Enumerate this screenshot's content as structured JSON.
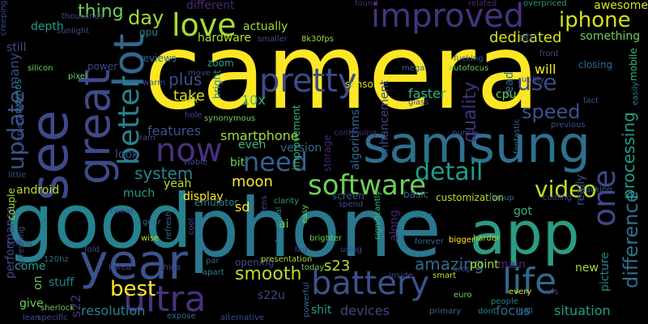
{
  "word_cloud": {
    "background": "#000000",
    "palette": [
      "#fde725",
      "#b5de2b",
      "#6ece58",
      "#35b779",
      "#1f9e89",
      "#26828e",
      "#31688e",
      "#3e4989",
      "#482878",
      "#440154"
    ],
    "words": [
      {
        "text": "camera",
        "color": "#fde725"
      },
      {
        "text": "good",
        "color": "#26828e"
      },
      {
        "text": "phone",
        "color": "#2a788e"
      },
      {
        "text": "app",
        "color": "#2c9b84"
      },
      {
        "text": "samsung",
        "color": "#2d708e"
      },
      {
        "text": "see",
        "color": "#3e4989"
      },
      {
        "text": "year",
        "color": "#3b528b"
      },
      {
        "text": "great",
        "color": "#3e4a89"
      },
      {
        "text": "lot",
        "color": "#31688e"
      },
      {
        "text": "battery",
        "color": "#3b528b"
      },
      {
        "text": "life",
        "color": "#31688e"
      },
      {
        "text": "improved",
        "color": "#46337e"
      },
      {
        "text": "pretty",
        "color": "#3e4a89"
      },
      {
        "text": "love",
        "color": "#a8db34"
      },
      {
        "text": "now",
        "color": "#46327e"
      },
      {
        "text": "software",
        "color": "#6ece58"
      },
      {
        "text": "detail",
        "color": "#1f9e89"
      },
      {
        "text": "ultra",
        "color": "#46327e"
      },
      {
        "text": "need",
        "color": "#35608d"
      },
      {
        "text": "one",
        "color": "#3f4889"
      },
      {
        "text": "better",
        "color": "#26828e"
      },
      {
        "text": "update",
        "color": "#3b528b"
      },
      {
        "text": "video",
        "color": "#c2df23"
      },
      {
        "text": "difference",
        "color": "#2c728e"
      },
      {
        "text": "iphone",
        "color": "#d2e21b"
      },
      {
        "text": "use",
        "color": "#3e4989"
      },
      {
        "text": "best",
        "color": "#fde725"
      },
      {
        "text": "day",
        "color": "#a5db36"
      },
      {
        "text": "speed",
        "color": "#3b528b"
      },
      {
        "text": "smooth",
        "color": "#b5de2b"
      },
      {
        "text": "quality",
        "color": "#46327e"
      },
      {
        "text": "amazing",
        "color": "#31688e"
      },
      {
        "text": "processing",
        "color": "#1f9e89"
      },
      {
        "text": "thing",
        "color": "#6ece58"
      },
      {
        "text": "dedicated",
        "color": "#d8e219"
      },
      {
        "text": "system",
        "color": "#26828e"
      },
      {
        "text": "smartphone",
        "color": "#a0da39"
      },
      {
        "text": "features",
        "color": "#3b528b"
      },
      {
        "text": "moon",
        "color": "#fde725"
      },
      {
        "text": "resolution",
        "color": "#26828e"
      },
      {
        "text": "devices",
        "color": "#3e4989"
      },
      {
        "text": "focus",
        "color": "#31688e"
      },
      {
        "text": "situation",
        "color": "#1f9e89"
      },
      {
        "text": "s23",
        "color": "#b5de2b"
      },
      {
        "text": "s22u",
        "color": "#3e4989"
      },
      {
        "text": "s22",
        "color": "#46327e"
      },
      {
        "text": "plus",
        "color": "#3b528b"
      },
      {
        "text": "take",
        "color": "#d8e219"
      },
      {
        "text": "hardware",
        "color": "#b5de2b"
      },
      {
        "text": "depth",
        "color": "#1f9e89"
      },
      {
        "text": "awesome",
        "color": "#d8e219"
      },
      {
        "text": "actually",
        "color": "#a0da39"
      },
      {
        "text": "etc",
        "color": "#3b528b"
      },
      {
        "text": "cpu",
        "color": "#6ece58"
      },
      {
        "text": "android",
        "color": "#b5de2b"
      },
      {
        "text": "performance",
        "color": "#3e4989"
      },
      {
        "text": "display",
        "color": "#fde725"
      },
      {
        "text": "10x",
        "color": "#35b779"
      },
      {
        "text": "sd",
        "color": "#fde725"
      },
      {
        "text": "ai",
        "color": "#6ece58"
      },
      {
        "text": "give",
        "color": "#6ece58"
      },
      {
        "text": "stuff",
        "color": "#26828e"
      },
      {
        "text": "come",
        "color": "#2c9b84"
      },
      {
        "text": "shit",
        "color": "#1f9e89"
      },
      {
        "text": "main",
        "color": "#482878"
      },
      {
        "text": "new",
        "color": "#a0da39"
      },
      {
        "text": "got",
        "color": "#35b779"
      },
      {
        "text": "yeah",
        "color": "#b5de2b"
      },
      {
        "text": "bit",
        "color": "#6ece58"
      },
      {
        "text": "much",
        "color": "#1f9e89"
      },
      {
        "text": "look",
        "color": "#3e4989"
      },
      {
        "text": "even",
        "color": "#35b779"
      },
      {
        "text": "version",
        "color": "#31688e"
      },
      {
        "text": "faster",
        "color": "#35b779"
      },
      {
        "text": "point",
        "color": "#a0da39"
      },
      {
        "text": "along",
        "color": "#482878"
      },
      {
        "text": "will",
        "color": "#fde725"
      },
      {
        "text": "read",
        "color": "#31688e"
      },
      {
        "text": "really",
        "color": "#3e4989"
      },
      {
        "text": "picture",
        "color": "#26828e"
      },
      {
        "text": "something",
        "color": "#6ece58"
      },
      {
        "text": "gpu",
        "color": "#26828e"
      },
      {
        "text": "zoom",
        "color": "#2c9b84"
      },
      {
        "text": "different",
        "color": "#482878"
      },
      {
        "text": "sensor",
        "color": "#d8e219"
      },
      {
        "text": "customization",
        "color": "#b5de2b"
      },
      {
        "text": "enhancement",
        "color": "#3e4989"
      },
      {
        "text": "algorithms",
        "color": "#31688e"
      },
      {
        "text": "improvement",
        "color": "#35b779"
      },
      {
        "text": "bright",
        "color": "#26828e"
      },
      {
        "text": "storage",
        "color": "#482878"
      },
      {
        "text": "screen",
        "color": "#3b528b"
      },
      {
        "text": "basic",
        "color": "#31688e"
      },
      {
        "text": "still",
        "color": "#3e4989"
      },
      {
        "text": "many",
        "color": "#3e4989"
      },
      {
        "text": "exynos",
        "color": "#26828e"
      },
      {
        "text": "on",
        "color": "#6ece58"
      },
      {
        "text": "couple",
        "color": "#a0da39"
      },
      {
        "text": "reviews",
        "color": "#31688e"
      },
      {
        "text": "power",
        "color": "#3e4989"
      },
      {
        "text": "closing",
        "color": "#31688e"
      },
      {
        "text": "emulator",
        "color": "#26828e"
      },
      {
        "text": "idr",
        "color": "#b5de2b"
      },
      {
        "text": "opening",
        "color": "#3e4989"
      },
      {
        "text": "clarity",
        "color": "#2c9b84"
      },
      {
        "text": "lineup",
        "color": "#31688e"
      },
      {
        "text": "glass",
        "color": "#3e4989"
      },
      {
        "text": "mega",
        "color": "#31688e"
      },
      {
        "text": "autofocus",
        "color": "#6ece58"
      },
      {
        "text": "thousands",
        "color": "#3e4989"
      },
      {
        "text": "overpriced",
        "color": "#2c9b84"
      },
      {
        "text": "related",
        "color": "#482878"
      },
      {
        "text": "found",
        "color": "#482878"
      },
      {
        "text": "front",
        "color": "#3e4989"
      },
      {
        "text": "mobile",
        "color": "#35b779"
      },
      {
        "text": "fucking",
        "color": "#3b528b"
      },
      {
        "text": "8k30fps",
        "color": "#a0da39"
      },
      {
        "text": "smaller",
        "color": "#3e4989"
      },
      {
        "text": "silicon",
        "color": "#6ece58"
      },
      {
        "text": "pixel",
        "color": "#6ece58"
      },
      {
        "text": "utility",
        "color": "#3e4989"
      },
      {
        "text": "fact",
        "color": "#3e4989"
      },
      {
        "text": "previous",
        "color": "#3b528b"
      },
      {
        "text": "easily",
        "color": "#26828e"
      },
      {
        "text": "fantastic",
        "color": "#31688e"
      },
      {
        "text": "cooling",
        "color": "#3e4989"
      },
      {
        "text": "lacking",
        "color": "#31688e"
      },
      {
        "text": "closer",
        "color": "#26828e"
      },
      {
        "text": "easy",
        "color": "#6ece58"
      },
      {
        "text": "brighter",
        "color": "#6ece58"
      },
      {
        "text": "lag",
        "color": "#3e4989"
      },
      {
        "text": "using",
        "color": "#3e4989"
      },
      {
        "text": "bigger",
        "color": "#fde725"
      },
      {
        "text": "harder",
        "color": "#b5de2b"
      },
      {
        "text": "forever",
        "color": "#31688e"
      },
      {
        "text": "smart",
        "color": "#b5de2b"
      },
      {
        "text": "inside",
        "color": "#3e4989"
      },
      {
        "text": "significantly",
        "color": "#35b779"
      },
      {
        "text": "primary",
        "color": "#31688e"
      },
      {
        "text": "every",
        "color": "#d8e219"
      },
      {
        "text": "ufs",
        "color": "#3e4989"
      },
      {
        "text": "hell",
        "color": "#31688e"
      },
      {
        "text": "people",
        "color": "#26828e"
      },
      {
        "text": "dont",
        "color": "#26828e"
      },
      {
        "text": "euro",
        "color": "#6ece58"
      },
      {
        "text": "crop",
        "color": "#3e4989"
      },
      {
        "text": "refreshing",
        "color": "#3e4989"
      },
      {
        "text": "120hz",
        "color": "#31688e"
      },
      {
        "text": "korea",
        "color": "#3e4989"
      },
      {
        "text": "china",
        "color": "#3e4989"
      },
      {
        "text": "fold",
        "color": "#3e4989"
      },
      {
        "text": "wise",
        "color": "#b5de2b"
      },
      {
        "text": "gear",
        "color": "#31688e"
      },
      {
        "text": "refresh",
        "color": "#31688e"
      },
      {
        "text": "cool",
        "color": "#3e4989"
      },
      {
        "text": "par",
        "color": "#31688e"
      },
      {
        "text": "apart",
        "color": "#26828e"
      },
      {
        "text": "presentation",
        "color": "#a0da39"
      },
      {
        "text": "today",
        "color": "#6ece58"
      },
      {
        "text": "professional",
        "color": "#26828e"
      },
      {
        "text": "sherlock",
        "color": "#6ece58"
      },
      {
        "text": "expose",
        "color": "#31688e"
      },
      {
        "text": "alternative",
        "color": "#3e4989"
      },
      {
        "text": "powerful",
        "color": "#31688e"
      },
      {
        "text": "specific",
        "color": "#3e4989"
      },
      {
        "text": "lean",
        "color": "#3e4989"
      },
      {
        "text": "selling",
        "color": "#3e4989"
      },
      {
        "text": "little",
        "color": "#3e4989"
      },
      {
        "text": "tweak",
        "color": "#3e4989"
      },
      {
        "text": "ram",
        "color": "#3e4989"
      },
      {
        "text": "viable",
        "color": "#3e4989"
      },
      {
        "text": "hole",
        "color": "#3e4989"
      },
      {
        "text": "synonymous",
        "color": "#6ece58"
      },
      {
        "text": "move",
        "color": "#3e4989"
      },
      {
        "text": "continuing",
        "color": "#482878"
      },
      {
        "text": "spend",
        "color": "#3e4989"
      },
      {
        "text": "lens",
        "color": "#3e4989"
      },
      {
        "text": "punch",
        "color": "#3e4989"
      },
      {
        "text": "warm",
        "color": "#3e4989"
      },
      {
        "text": "sunlight",
        "color": "#3e4989"
      },
      {
        "text": "creeping",
        "color": "#3e4989"
      },
      {
        "text": "explanations",
        "color": "#3e4989"
      }
    ]
  }
}
